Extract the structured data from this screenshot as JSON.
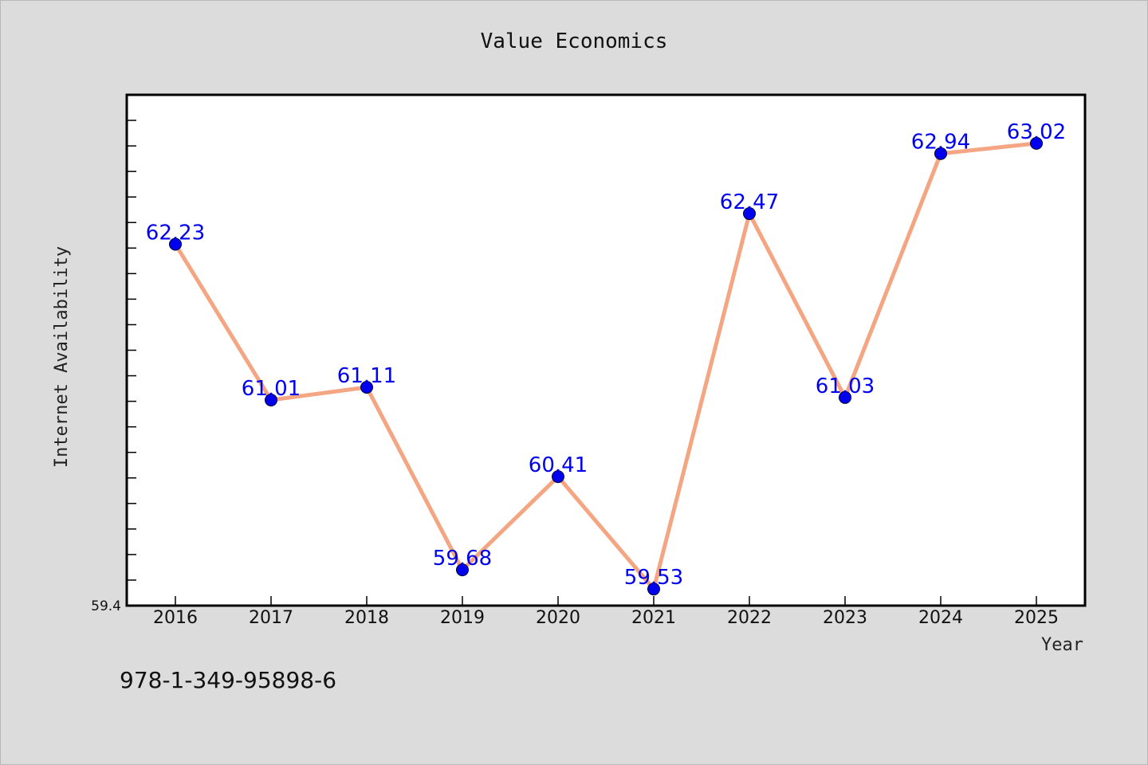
{
  "chart_data": {
    "type": "line",
    "title": "Value Economics",
    "xlabel": "Year",
    "ylabel": "Internet Availability",
    "categories": [
      "2016",
      "2017",
      "2018",
      "2019",
      "2020",
      "2021",
      "2022",
      "2023",
      "2024",
      "2025"
    ],
    "series": [
      {
        "values": [
          62.23,
          61.01,
          61.11,
          59.68,
          60.41,
          59.53,
          62.47,
          61.03,
          62.94,
          63.02
        ]
      }
    ],
    "y_min_label": "59.4",
    "ylim": [
      59.4,
      63.4
    ],
    "grid": false,
    "line_color": "#f4a582",
    "marker_color": "#0000ee",
    "label_color": "#0000ee"
  },
  "footnote": "978-1-349-95898-6"
}
